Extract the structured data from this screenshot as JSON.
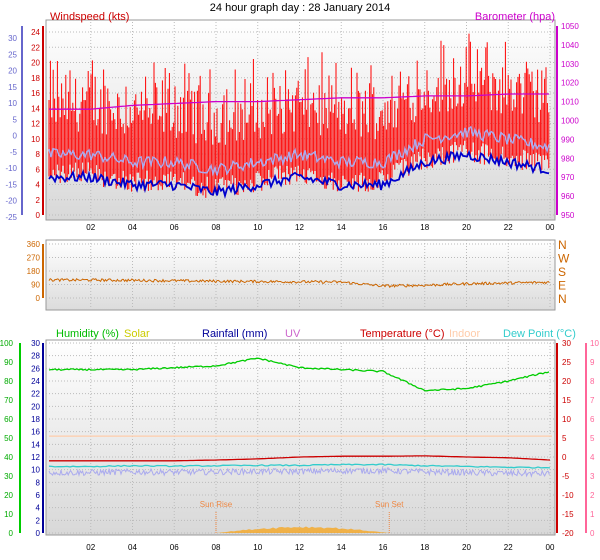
{
  "page": {
    "title": "24 hour graph day : 28 January 2014"
  },
  "colors": {
    "wind": "#ff0000",
    "gust_axis": "#6666cc",
    "wind_avg": "#0000cc",
    "wind_light": "#aaaaee",
    "baro": "#cc00cc",
    "dir": "#cc6600",
    "humidity": "#00bb00",
    "solar": "#cccc00",
    "rain": "#000099",
    "uv": "#cc66cc",
    "temp": "#cc0000",
    "indoor": "#ffccaa",
    "dew": "#33cccc",
    "dew_axis": "#ff6699",
    "sun_marker": "#ee8844"
  },
  "panel1": {
    "legend_left": "Windspeed (kts)",
    "legend_right": "Barometer (hpa)",
    "left_outer_ticks": [
      "30",
      "25",
      "20",
      "15",
      "10",
      "5",
      "0",
      "-5",
      "-10",
      "-15",
      "-20",
      "-25"
    ],
    "left_inner_ticks": [
      "24",
      "22",
      "20",
      "18",
      "16",
      "14",
      "12",
      "10",
      "8",
      "6",
      "4",
      "2",
      "0"
    ],
    "right_ticks": [
      "1050",
      "1040",
      "1030",
      "1020",
      "1010",
      "1000",
      "990",
      "980",
      "970",
      "960",
      "950"
    ]
  },
  "panel2": {
    "left_ticks": [
      "360",
      "270",
      "180",
      "90",
      "0"
    ],
    "right_labels": [
      "N",
      "W",
      "S",
      "E",
      "N"
    ]
  },
  "panel3": {
    "legend": [
      {
        "label": "Humidity (%)",
        "color_key": "humidity"
      },
      {
        "label": "Solar",
        "color_key": "solar"
      },
      {
        "label": "Rainfall (mm)",
        "color_key": "rain"
      },
      {
        "label": "UV",
        "color_key": "uv"
      },
      {
        "label": "Temperature (°C)",
        "color_key": "temp"
      },
      {
        "label": "Indoor",
        "color_key": "indoor"
      },
      {
        "label": "Dew Point (°C)",
        "color_key": "dew"
      }
    ],
    "humidity_ticks": [
      "100",
      "90",
      "80",
      "70",
      "60",
      "50",
      "40",
      "30",
      "20",
      "10",
      "0"
    ],
    "rain_ticks": [
      "30",
      "28",
      "26",
      "24",
      "22",
      "20",
      "18",
      "16",
      "14",
      "12",
      "10",
      "8",
      "6",
      "4",
      "2",
      "0"
    ],
    "temp_ticks": [
      "30",
      "25",
      "20",
      "15",
      "10",
      "5",
      "0",
      "-5",
      "-10",
      "-15",
      "-20"
    ],
    "uv_ticks": [
      "10",
      "9",
      "8",
      "7",
      "6",
      "5",
      "4",
      "3",
      "2",
      "1",
      "0"
    ],
    "sun_rise": "Sun Rise",
    "sun_set": "Sun Set"
  },
  "chart_data": [
    {
      "type": "line",
      "title": "",
      "x": [
        "02",
        "04",
        "06",
        "08",
        "10",
        "12",
        "14",
        "16",
        "18",
        "20",
        "22",
        "00"
      ],
      "series": [
        {
          "name": "Windspeed (kts)",
          "values": [
            11,
            10,
            10,
            9,
            10,
            11,
            10,
            10,
            13,
            14,
            13,
            12
          ]
        },
        {
          "name": "Barometer (hpa)",
          "values": [
            1006,
            1008,
            1009,
            1010,
            1010,
            1011,
            1012,
            1012,
            1013,
            1013,
            1014,
            1014
          ]
        }
      ],
      "ylim": [
        0,
        25
      ],
      "ylim_right": [
        950,
        1050
      ]
    },
    {
      "type": "line",
      "title": "",
      "x": [
        "02",
        "04",
        "06",
        "08",
        "10",
        "12",
        "14",
        "16",
        "18",
        "20",
        "22",
        "00"
      ],
      "series": [
        {
          "name": "Wind direction",
          "values": [
            120,
            118,
            115,
            112,
            110,
            108,
            106,
            80,
            85,
            95,
            100,
            105
          ]
        }
      ],
      "ylim": [
        0,
        360
      ]
    },
    {
      "type": "line",
      "title": "",
      "x": [
        "02",
        "04",
        "06",
        "08",
        "10",
        "12",
        "14",
        "16",
        "18",
        "20",
        "22",
        "00"
      ],
      "series": [
        {
          "name": "Humidity (%)",
          "values": [
            86,
            86,
            87,
            88,
            92,
            87,
            86,
            85,
            75,
            76,
            80,
            85
          ]
        },
        {
          "name": "Temperature (°C)",
          "values": [
            -1,
            -1,
            -1,
            -0.8,
            -0.5,
            0,
            0.2,
            0.2,
            0.3,
            0,
            -0.2,
            -0.8
          ]
        },
        {
          "name": "Dew Point (°C)",
          "values": [
            -2.5,
            -2.3,
            -2.4,
            -2.3,
            -2.2,
            -2.2,
            -2.0,
            -2.0,
            -2.3,
            -2.5,
            -2.7,
            -2.8
          ]
        }
      ],
      "ylim": [
        0,
        100
      ],
      "ylim_right": [
        -20,
        30
      ]
    }
  ]
}
